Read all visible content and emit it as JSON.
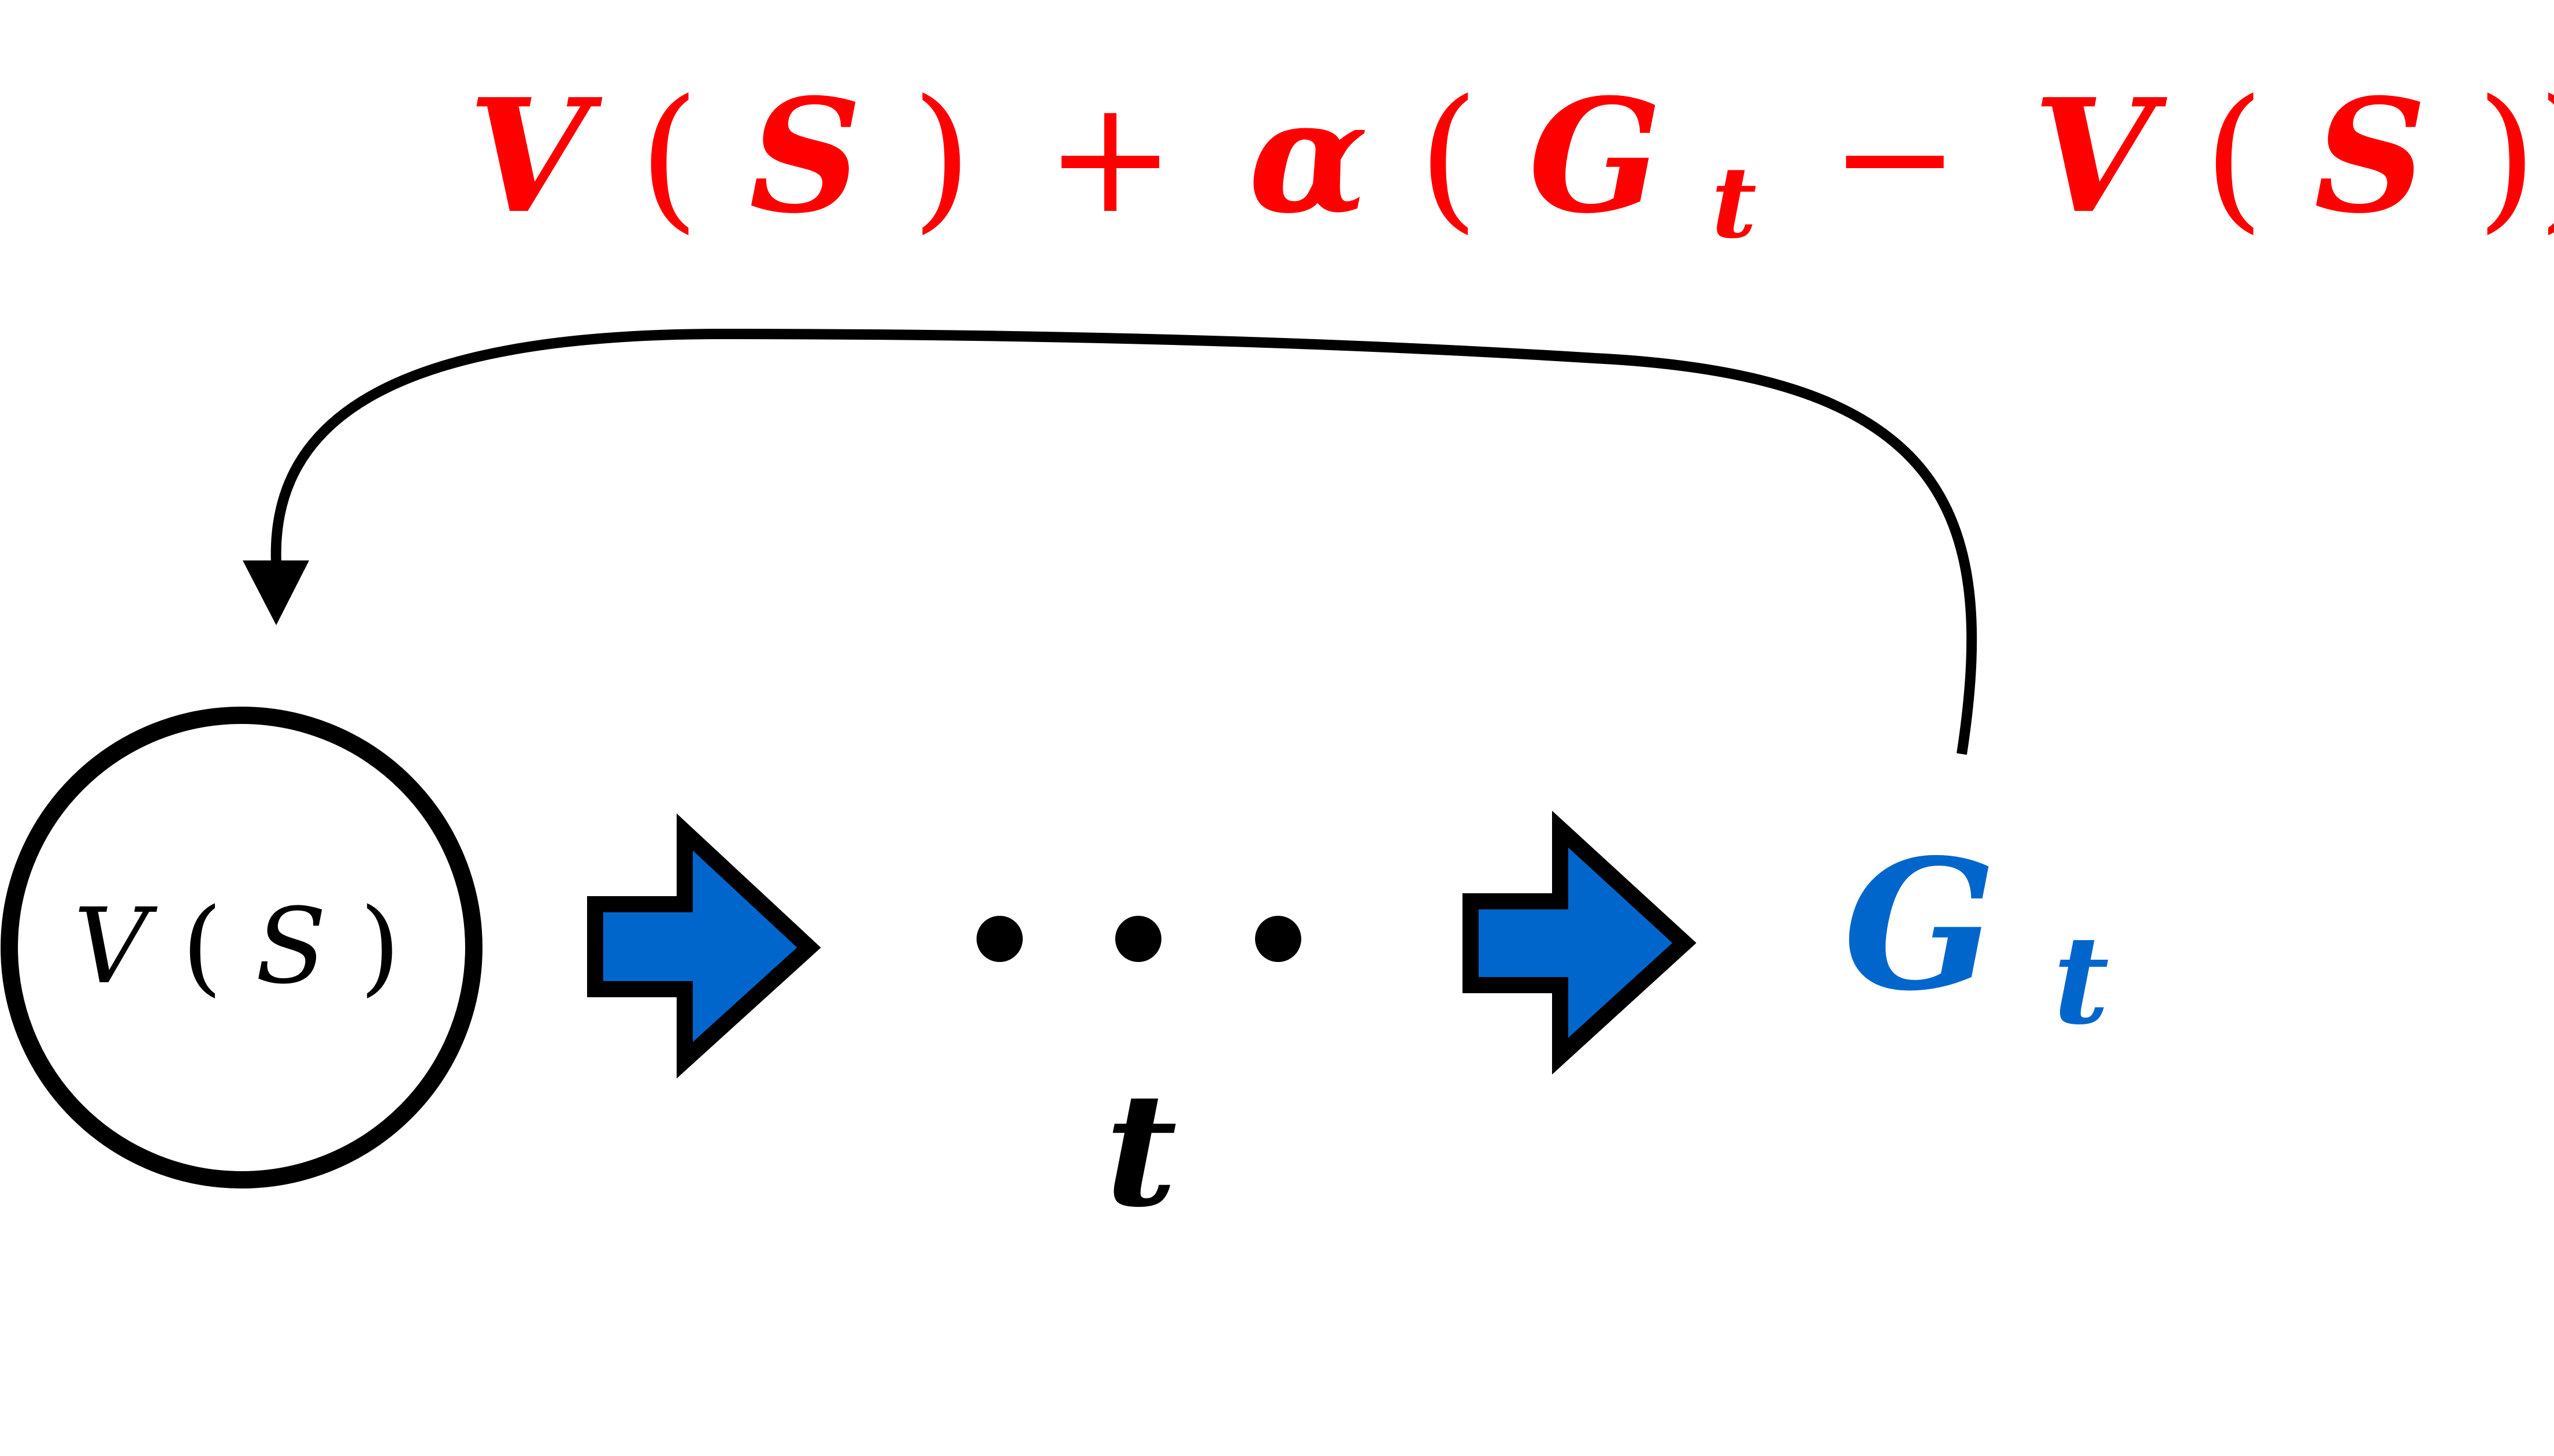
{
  "update_formula": {
    "v": "V",
    "open1": "(",
    "s": "S",
    "close1": ")",
    "plus": "+",
    "alpha": "α",
    "open2": "(",
    "g": "G",
    "g_sub": "t",
    "minus": "−",
    "v2": "V",
    "open3": "(",
    "s2": "S",
    "close3": "))",
    "color": "#ff0000"
  },
  "state_node": {
    "v": "V",
    "open": "(",
    "s": "S",
    "close": ")"
  },
  "ellipsis": {
    "time_label": "t"
  },
  "return_label": {
    "g": "G",
    "sub": "t",
    "color": "#0066cc"
  },
  "colors": {
    "arrow_fill": "#0066cc",
    "stroke": "#000000"
  }
}
